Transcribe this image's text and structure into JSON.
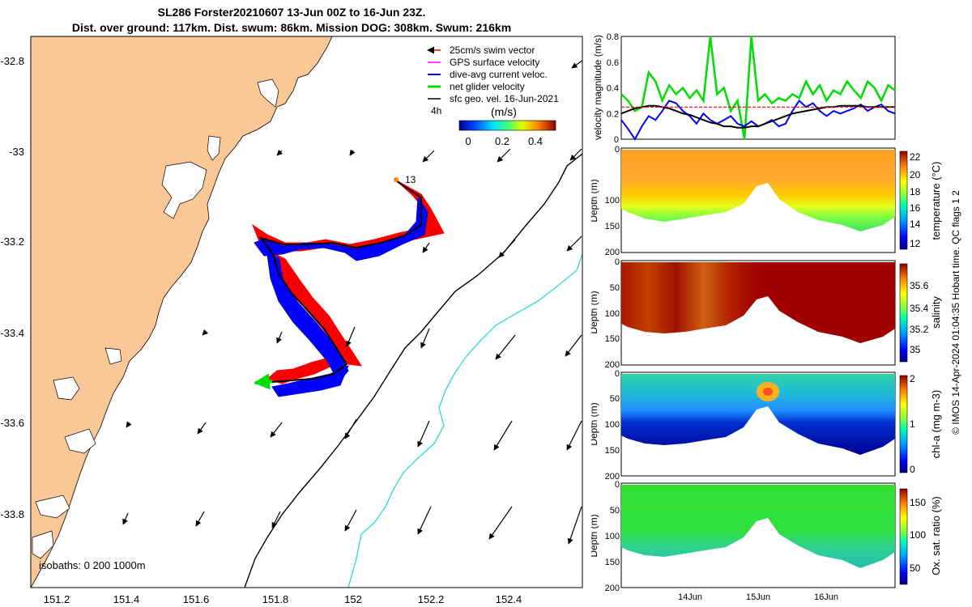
{
  "header": {
    "line1": "SL286 Forster20210607 13-Jun 00Z to 16-Jun 23Z.",
    "line2": "Dist. over ground: 117km. Dist. swum: 86km. Mission DOG: 308km. Swum: 216km"
  },
  "legend": {
    "items": [
      {
        "label": "25cm/s swim vector",
        "color": "#ff0000"
      },
      {
        "label": "GPS surface velocity",
        "color": "#ff00ff"
      },
      {
        "label": "dive-avg current veloc.",
        "color": "#0000ff"
      },
      {
        "label": "net glider velocity",
        "color": "#00dd00"
      },
      {
        "label": "sfc geo. vel. 16-Jun-2021",
        "color": "#000000"
      }
    ],
    "time_label": "4h",
    "unit_label": "(m/s)",
    "colorbar_ticks": [
      "0",
      "0.2",
      "0.4"
    ]
  },
  "map": {
    "x_ticks": [
      "151.2",
      "151.4",
      "151.6",
      "151.8",
      "152",
      "152.2",
      "152.4"
    ],
    "y_ticks": [
      "-32.8",
      "-33",
      "-33.2",
      "-33.4",
      "-33.6",
      "-33.8"
    ],
    "isobath_label": "isobaths: 0   200  1000m",
    "start_label": "13",
    "colors": {
      "land": "#f9c896",
      "isobath_200": "#000000",
      "isobath_1000": "#33dddd"
    }
  },
  "panels": {
    "depth_label": "Depth (m)",
    "depth_ticks": [
      "0",
      "50",
      "100",
      "150",
      "200"
    ],
    "time_ticks": [
      "14Jun",
      "15Jun",
      "16Jun"
    ]
  },
  "credit": "© IMOS 14-Apr-2024 01:04:35 Hobart time. QC flags 1  2",
  "chart_data": [
    {
      "type": "line",
      "title": "",
      "ylabel": "velocity magnitude (m/s)",
      "ylim": [
        0,
        0.8
      ],
      "y_ticks": [
        "0",
        "0.2",
        "0.4",
        "0.6",
        "0.8"
      ],
      "x": [
        13.0,
        13.1,
        13.2,
        13.3,
        13.4,
        13.5,
        13.6,
        13.7,
        13.8,
        13.9,
        14.0,
        14.1,
        14.2,
        14.3,
        14.4,
        14.5,
        14.6,
        14.7,
        14.8,
        14.9,
        15.0,
        15.1,
        15.2,
        15.3,
        15.4,
        15.5,
        15.6,
        15.7,
        15.8,
        15.9,
        16.0,
        16.1,
        16.2,
        16.3,
        16.4,
        16.5,
        16.6,
        16.7,
        16.8,
        16.9,
        17.0
      ],
      "series": [
        {
          "name": "net glider velocity",
          "color": "#00dd00",
          "values": [
            0.35,
            0.3,
            0.22,
            0.25,
            0.52,
            0.45,
            0.3,
            0.42,
            0.35,
            0.4,
            0.32,
            0.38,
            0.3,
            0.8,
            0.35,
            0.4,
            0.22,
            0.3,
            0.0,
            0.8,
            0.3,
            0.35,
            0.28,
            0.32,
            0.3,
            0.35,
            0.32,
            0.45,
            0.35,
            0.42,
            0.3,
            0.38,
            0.35,
            0.45,
            0.38,
            0.32,
            0.45,
            0.4,
            0.3,
            0.42,
            0.38
          ]
        },
        {
          "name": "dive-avg current veloc.",
          "color": "#0000ff",
          "values": [
            0.15,
            0.08,
            0.0,
            0.1,
            0.18,
            0.15,
            0.22,
            0.3,
            0.28,
            0.22,
            0.18,
            0.12,
            0.2,
            0.15,
            0.12,
            0.15,
            0.18,
            0.12,
            0.1,
            0.14,
            0.1,
            0.12,
            0.15,
            0.1,
            0.12,
            0.22,
            0.3,
            0.25,
            0.28,
            0.22,
            0.18,
            0.22,
            0.2,
            0.22,
            0.24,
            0.27,
            0.22,
            0.25,
            0.27,
            0.22,
            0.2
          ]
        },
        {
          "name": "sfc geo. vel.",
          "color": "#000000",
          "values": [
            0.2,
            0.22,
            0.24,
            0.25,
            0.26,
            0.26,
            0.25,
            0.24,
            0.22,
            0.2,
            0.19,
            0.17,
            0.15,
            0.13,
            0.12,
            0.1,
            0.1,
            0.09,
            0.09,
            0.1,
            0.1,
            0.12,
            0.14,
            0.16,
            0.18,
            0.2,
            0.21,
            0.22,
            0.23,
            0.24,
            0.25,
            0.25,
            0.26,
            0.26,
            0.26,
            0.26,
            0.25,
            0.25,
            0.25,
            0.25,
            0.25
          ]
        },
        {
          "name": "25cm/s swim vector",
          "color": "#ff0000",
          "values": [
            0.25,
            0.25,
            0.25,
            0.25,
            0.25,
            0.25,
            0.25,
            0.25,
            0.25,
            0.25,
            0.25,
            0.25,
            0.25,
            0.25,
            0.25,
            0.25,
            0.25,
            0.25,
            0.25,
            0.25,
            0.25,
            0.25,
            0.25,
            0.25,
            0.25,
            0.25,
            0.25,
            0.25,
            0.25,
            0.25,
            0.25,
            0.25,
            0.25,
            0.25,
            0.25,
            0.25,
            0.25,
            0.25,
            0.25,
            0.25,
            0.25
          ]
        }
      ]
    },
    {
      "type": "heatmap",
      "title": "",
      "variable": "temperature (°C)",
      "ylabel": "Depth (m)",
      "colorbar_ticks": [
        "12",
        "14",
        "16",
        "18",
        "20",
        "22"
      ],
      "x": [
        "14Jun",
        "15Jun",
        "16Jun"
      ],
      "ylim": [
        200,
        0
      ]
    },
    {
      "type": "heatmap",
      "title": "",
      "variable": "salinity",
      "ylabel": "Depth (m)",
      "colorbar_ticks": [
        "35",
        "35.2",
        "35.4",
        "35.6"
      ],
      "x": [
        "14Jun",
        "15Jun",
        "16Jun"
      ],
      "ylim": [
        200,
        0
      ]
    },
    {
      "type": "heatmap",
      "title": "",
      "variable": "chl-a (mg m-3)",
      "ylabel": "Depth (m)",
      "colorbar_ticks": [
        "0",
        "1",
        "2"
      ],
      "x": [
        "14Jun",
        "15Jun",
        "16Jun"
      ],
      "ylim": [
        200,
        0
      ]
    },
    {
      "type": "heatmap",
      "title": "",
      "variable": "Ox. sat. ratio (%)",
      "ylabel": "Depth (m)",
      "colorbar_ticks": [
        "50",
        "100",
        "150"
      ],
      "x": [
        "14Jun",
        "15Jun",
        "16Jun"
      ],
      "ylim": [
        200,
        0
      ]
    }
  ]
}
